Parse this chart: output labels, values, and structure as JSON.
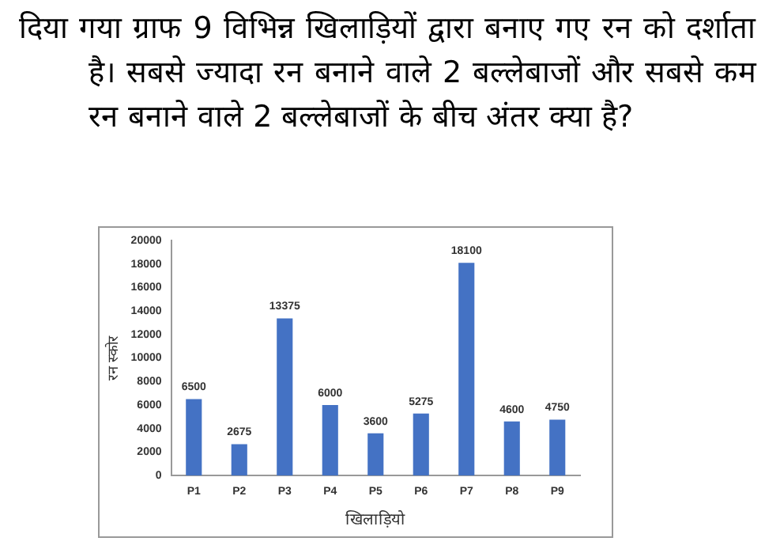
{
  "chart_data": {
    "type": "bar",
    "title": "दिया गया ग्राफ 9 विभिन्न खिलाड़ियों द्वारा बनाए गए रन को दर्शाता है। सबसे ज्यादा रन बनाने वाले 2 बल्लेबाजों और सबसे कम रन बनाने वाले 2 बल्लेबाजों के बीच अंतर क्या है?",
    "xlabel": "खिलाड़ियो",
    "ylabel": "रन स्कोर",
    "categories": [
      "P1",
      "P2",
      "P3",
      "P4",
      "P5",
      "P6",
      "P7",
      "P8",
      "P9"
    ],
    "values": [
      6500,
      2675,
      13375,
      6000,
      3600,
      5275,
      18100,
      4600,
      4750
    ],
    "color": "#4472c4",
    "ylim": [
      0,
      20000
    ],
    "yticks": [
      0,
      2000,
      4000,
      6000,
      8000,
      10000,
      12000,
      14000,
      16000,
      18000,
      20000
    ],
    "grid": false,
    "legend": false,
    "data_labels": true
  }
}
